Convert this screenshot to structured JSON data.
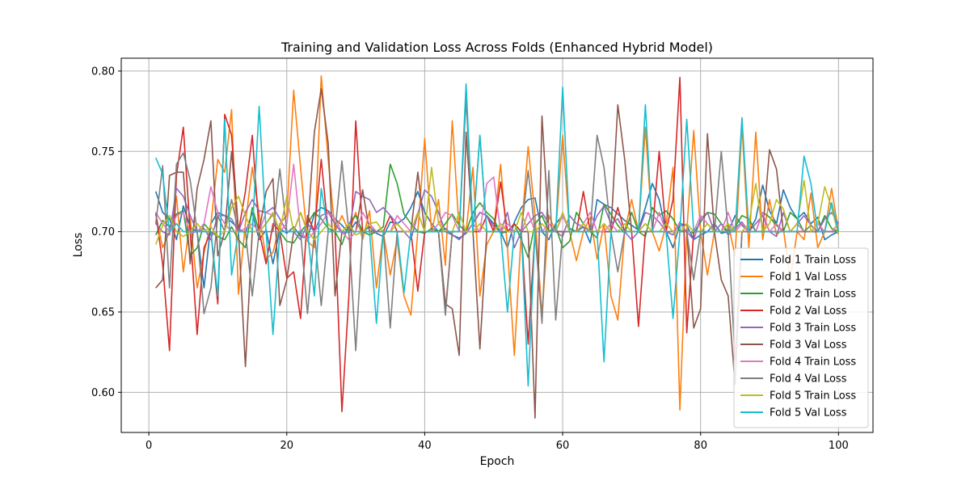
{
  "chart_data": {
    "type": "line",
    "title": "Training and Validation Loss Across Folds (Enhanced Hybrid Model)",
    "xlabel": "Epoch",
    "ylabel": "Loss",
    "xlim": [
      -4,
      105
    ],
    "ylim": [
      0.575,
      0.808
    ],
    "xticks": [
      0,
      20,
      40,
      60,
      80,
      100
    ],
    "yticks": [
      0.6,
      0.65,
      0.7,
      0.75,
      0.8
    ],
    "ytick_labels": [
      "0.60",
      "0.65",
      "0.70",
      "0.75",
      "0.80"
    ],
    "grid": true,
    "legend_position": "lower-right",
    "series": [
      {
        "name": "Fold 1 Train Loss",
        "color": "#1f77b4",
        "x_start": 1,
        "values": [
          0.725,
          0.712,
          0.708,
          0.695,
          0.716,
          0.703,
          0.7,
          0.665,
          0.705,
          0.712,
          0.71,
          0.706,
          0.702,
          0.699,
          0.712,
          0.695,
          0.701,
          0.68,
          0.702,
          0.699,
          0.703,
          0.697,
          0.696,
          0.711,
          0.715,
          0.713,
          0.708,
          0.704,
          0.699,
          0.706,
          0.7,
          0.703,
          0.699,
          0.697,
          0.706,
          0.705,
          0.708,
          0.715,
          0.725,
          0.712,
          0.705,
          0.7,
          0.702,
          0.698,
          0.696,
          0.699,
          0.705,
          0.712,
          0.71,
          0.705,
          0.7,
          0.69,
          0.706,
          0.715,
          0.72,
          0.721,
          0.7,
          0.695,
          0.705,
          0.71,
          0.702,
          0.7,
          0.703,
          0.693,
          0.72,
          0.717,
          0.715,
          0.711,
          0.707,
          0.704,
          0.701,
          0.715,
          0.73,
          0.72,
          0.7,
          0.69,
          0.705,
          0.704,
          0.695,
          0.698,
          0.7,
          0.705,
          0.699,
          0.7,
          0.71,
          0.704,
          0.7,
          0.708,
          0.729,
          0.713,
          0.705,
          0.726,
          0.715,
          0.708,
          0.712,
          0.705,
          0.709,
          0.695,
          0.698,
          0.7
        ]
      },
      {
        "name": "Fold 1 Val Loss",
        "color": "#ff7f0e",
        "x_start": 1,
        "values": [
          0.711,
          0.69,
          0.7,
          0.722,
          0.675,
          0.708,
          0.665,
          0.687,
          0.705,
          0.745,
          0.737,
          0.776,
          0.661,
          0.705,
          0.74,
          0.711,
          0.683,
          0.687,
          0.705,
          0.71,
          0.788,
          0.74,
          0.694,
          0.69,
          0.797,
          0.745,
          0.7,
          0.71,
          0.7,
          0.712,
          0.695,
          0.713,
          0.665,
          0.7,
          0.673,
          0.695,
          0.66,
          0.648,
          0.7,
          0.758,
          0.7,
          0.72,
          0.679,
          0.769,
          0.7,
          0.7,
          0.74,
          0.66,
          0.692,
          0.7,
          0.742,
          0.69,
          0.623,
          0.7,
          0.753,
          0.71,
          0.648,
          0.71,
          0.7,
          0.76,
          0.7,
          0.682,
          0.7,
          0.709,
          0.683,
          0.705,
          0.66,
          0.645,
          0.7,
          0.72,
          0.7,
          0.765,
          0.7,
          0.688,
          0.704,
          0.74,
          0.589,
          0.7,
          0.763,
          0.7,
          0.673,
          0.7,
          0.7,
          0.705,
          0.685,
          0.766,
          0.69,
          0.762,
          0.695,
          0.72,
          0.698,
          0.702,
          0.67,
          0.7,
          0.695,
          0.724,
          0.69,
          0.7,
          0.727,
          0.7
        ]
      },
      {
        "name": "Fold 2 Train Loss",
        "color": "#2ca02c",
        "x_start": 1,
        "values": [
          0.698,
          0.707,
          0.703,
          0.711,
          0.713,
          0.685,
          0.69,
          0.705,
          0.7,
          0.697,
          0.695,
          0.703,
          0.695,
          0.69,
          0.715,
          0.7,
          0.705,
          0.711,
          0.7,
          0.694,
          0.693,
          0.7,
          0.705,
          0.712,
          0.708,
          0.702,
          0.7,
          0.692,
          0.705,
          0.71,
          0.7,
          0.698,
          0.7,
          0.703,
          0.742,
          0.73,
          0.711,
          0.705,
          0.7,
          0.699,
          0.702,
          0.7,
          0.705,
          0.711,
          0.704,
          0.7,
          0.712,
          0.718,
          0.712,
          0.708,
          0.699,
          0.7,
          0.705,
          0.695,
          0.684,
          0.705,
          0.71,
          0.7,
          0.703,
          0.69,
          0.694,
          0.712,
          0.705,
          0.7,
          0.696,
          0.717,
          0.711,
          0.704,
          0.699,
          0.712,
          0.7,
          0.697,
          0.715,
          0.71,
          0.713,
          0.708,
          0.7,
          0.701,
          0.699,
          0.706,
          0.712,
          0.711,
          0.705,
          0.7,
          0.703,
          0.71,
          0.708,
          0.7,
          0.712,
          0.709,
          0.704,
          0.7,
          0.712,
          0.708,
          0.7,
          0.704,
          0.7,
          0.71,
          0.702,
          0.7
        ]
      },
      {
        "name": "Fold 2 Val Loss",
        "color": "#d62728",
        "x_start": 1,
        "values": [
          0.712,
          0.68,
          0.626,
          0.735,
          0.765,
          0.7,
          0.636,
          0.69,
          0.7,
          0.655,
          0.773,
          0.76,
          0.7,
          0.725,
          0.76,
          0.7,
          0.68,
          0.705,
          0.7,
          0.671,
          0.675,
          0.646,
          0.71,
          0.7,
          0.745,
          0.7,
          0.7,
          0.588,
          0.66,
          0.769,
          0.7,
          0.7,
          0.7,
          0.7,
          0.71,
          0.7,
          0.7,
          0.7,
          0.663,
          0.7,
          0.7,
          0.7,
          0.65,
          0.7,
          0.7,
          0.7,
          0.7,
          0.7,
          0.71,
          0.7,
          0.731,
          0.7,
          0.705,
          0.7,
          0.63,
          0.7,
          0.7,
          0.7,
          0.7,
          0.7,
          0.7,
          0.7,
          0.725,
          0.7,
          0.7,
          0.7,
          0.7,
          0.715,
          0.7,
          0.7,
          0.641,
          0.7,
          0.7,
          0.75,
          0.7,
          0.72,
          0.796,
          0.637,
          0.7,
          0.7,
          0.7,
          0.7,
          0.7,
          0.7,
          0.7,
          0.7,
          0.7,
          0.7,
          0.7,
          0.7,
          0.7,
          0.7,
          0.7,
          0.7,
          0.7,
          0.7,
          0.7,
          0.7,
          0.7,
          0.7
        ]
      },
      {
        "name": "Fold 3 Train Loss",
        "color": "#9467bd",
        "x_start": 1,
        "values": [
          0.705,
          0.7,
          0.698,
          0.727,
          0.722,
          0.71,
          0.7,
          0.702,
          0.695,
          0.71,
          0.71,
          0.708,
          0.7,
          0.712,
          0.72,
          0.713,
          0.712,
          0.715,
          0.708,
          0.7,
          0.7,
          0.695,
          0.705,
          0.7,
          0.71,
          0.712,
          0.705,
          0.699,
          0.7,
          0.725,
          0.722,
          0.72,
          0.712,
          0.715,
          0.71,
          0.705,
          0.7,
          0.695,
          0.711,
          0.726,
          0.722,
          0.712,
          0.7,
          0.698,
          0.695,
          0.7,
          0.705,
          0.712,
          0.71,
          0.703,
          0.7,
          0.712,
          0.69,
          0.7,
          0.705,
          0.71,
          0.712,
          0.705,
          0.7,
          0.697,
          0.71,
          0.705,
          0.703,
          0.7,
          0.71,
          0.716,
          0.705,
          0.708,
          0.7,
          0.695,
          0.7,
          0.712,
          0.71,
          0.706,
          0.7,
          0.698,
          0.706,
          0.7,
          0.695,
          0.708,
          0.712,
          0.7,
          0.705,
          0.698,
          0.702,
          0.706,
          0.7,
          0.705,
          0.71,
          0.7,
          0.697,
          0.712,
          0.7,
          0.705,
          0.71,
          0.704,
          0.7,
          0.708,
          0.712,
          0.705
        ]
      },
      {
        "name": "Fold 3 Val Loss",
        "color": "#8c564b",
        "x_start": 1,
        "values": [
          0.665,
          0.67,
          0.735,
          0.737,
          0.737,
          0.68,
          0.727,
          0.745,
          0.769,
          0.685,
          0.7,
          0.75,
          0.7,
          0.616,
          0.7,
          0.7,
          0.725,
          0.733,
          0.654,
          0.67,
          0.7,
          0.712,
          0.7,
          0.762,
          0.789,
          0.755,
          0.66,
          0.7,
          0.7,
          0.7,
          0.726,
          0.7,
          0.7,
          0.7,
          0.7,
          0.7,
          0.7,
          0.7,
          0.737,
          0.7,
          0.7,
          0.7,
          0.655,
          0.652,
          0.623,
          0.762,
          0.7,
          0.627,
          0.7,
          0.7,
          0.7,
          0.7,
          0.7,
          0.7,
          0.7,
          0.584,
          0.772,
          0.7,
          0.7,
          0.7,
          0.7,
          0.7,
          0.7,
          0.7,
          0.7,
          0.7,
          0.7,
          0.779,
          0.745,
          0.7,
          0.7,
          0.7,
          0.7,
          0.7,
          0.7,
          0.7,
          0.7,
          0.7,
          0.64,
          0.652,
          0.761,
          0.7,
          0.67,
          0.66,
          0.605,
          0.7,
          0.7,
          0.7,
          0.7,
          0.751,
          0.739,
          0.7,
          0.7,
          0.7,
          0.7,
          0.7,
          0.7,
          0.7,
          0.7,
          0.7
        ]
      },
      {
        "name": "Fold 4 Train Loss",
        "color": "#e377c2",
        "x_start": 1,
        "values": [
          0.712,
          0.705,
          0.7,
          0.71,
          0.712,
          0.699,
          0.7,
          0.705,
          0.728,
          0.712,
          0.705,
          0.7,
          0.7,
          0.702,
          0.705,
          0.7,
          0.712,
          0.71,
          0.7,
          0.705,
          0.742,
          0.7,
          0.695,
          0.7,
          0.705,
          0.712,
          0.708,
          0.7,
          0.695,
          0.7,
          0.712,
          0.705,
          0.7,
          0.7,
          0.7,
          0.71,
          0.705,
          0.7,
          0.712,
          0.7,
          0.7,
          0.705,
          0.712,
          0.71,
          0.7,
          0.7,
          0.705,
          0.7,
          0.73,
          0.734,
          0.7,
          0.705,
          0.7,
          0.7,
          0.712,
          0.7,
          0.7,
          0.705,
          0.7,
          0.71,
          0.7,
          0.7,
          0.705,
          0.712,
          0.7,
          0.7,
          0.705,
          0.7,
          0.7,
          0.7,
          0.7,
          0.705,
          0.7,
          0.712,
          0.7,
          0.7,
          0.705,
          0.7,
          0.7,
          0.71,
          0.705,
          0.7,
          0.7,
          0.712,
          0.7,
          0.705,
          0.7,
          0.7,
          0.712,
          0.7,
          0.705,
          0.7,
          0.7,
          0.705,
          0.7,
          0.7,
          0.705,
          0.7,
          0.7,
          0.705
        ]
      },
      {
        "name": "Fold 4 Val Loss",
        "color": "#7f7f7f",
        "x_start": 1,
        "values": [
          0.705,
          0.741,
          0.665,
          0.742,
          0.749,
          0.732,
          0.7,
          0.649,
          0.665,
          0.71,
          0.7,
          0.72,
          0.7,
          0.7,
          0.66,
          0.7,
          0.7,
          0.7,
          0.739,
          0.7,
          0.7,
          0.7,
          0.649,
          0.7,
          0.654,
          0.7,
          0.7,
          0.744,
          0.7,
          0.626,
          0.7,
          0.7,
          0.7,
          0.7,
          0.64,
          0.7,
          0.7,
          0.7,
          0.7,
          0.7,
          0.7,
          0.7,
          0.648,
          0.7,
          0.7,
          0.783,
          0.7,
          0.76,
          0.7,
          0.7,
          0.7,
          0.7,
          0.7,
          0.7,
          0.738,
          0.7,
          0.643,
          0.738,
          0.645,
          0.7,
          0.7,
          0.7,
          0.7,
          0.7,
          0.76,
          0.74,
          0.7,
          0.675,
          0.7,
          0.7,
          0.7,
          0.7,
          0.7,
          0.7,
          0.7,
          0.7,
          0.7,
          0.7,
          0.67,
          0.7,
          0.7,
          0.7,
          0.75,
          0.7,
          0.62,
          0.7,
          0.7,
          0.7,
          0.7,
          0.7,
          0.7,
          0.7,
          0.7,
          0.7,
          0.7,
          0.7,
          0.7,
          0.7,
          0.7,
          0.7
        ]
      },
      {
        "name": "Fold 5 Train Loss",
        "color": "#bcbd22",
        "x_start": 1,
        "values": [
          0.692,
          0.704,
          0.71,
          0.7,
          0.697,
          0.7,
          0.705,
          0.7,
          0.703,
          0.697,
          0.7,
          0.715,
          0.722,
          0.71,
          0.7,
          0.7,
          0.705,
          0.712,
          0.7,
          0.722,
          0.7,
          0.712,
          0.7,
          0.695,
          0.7,
          0.705,
          0.7,
          0.7,
          0.705,
          0.698,
          0.7,
          0.705,
          0.706,
          0.7,
          0.7,
          0.705,
          0.7,
          0.7,
          0.712,
          0.7,
          0.74,
          0.705,
          0.7,
          0.7,
          0.712,
          0.7,
          0.7,
          0.705,
          0.7,
          0.7,
          0.705,
          0.7,
          0.7,
          0.712,
          0.7,
          0.7,
          0.705,
          0.7,
          0.7,
          0.712,
          0.7,
          0.7,
          0.705,
          0.7,
          0.7,
          0.705,
          0.7,
          0.7,
          0.705,
          0.7,
          0.7,
          0.705,
          0.7,
          0.7,
          0.705,
          0.7,
          0.7,
          0.705,
          0.7,
          0.7,
          0.705,
          0.7,
          0.7,
          0.705,
          0.7,
          0.7,
          0.705,
          0.73,
          0.7,
          0.705,
          0.72,
          0.714,
          0.7,
          0.705,
          0.732,
          0.7,
          0.705,
          0.728,
          0.715,
          0.698
        ]
      },
      {
        "name": "Fold 5 Val Loss",
        "color": "#17becf",
        "x_start": 1,
        "values": [
          0.746,
          0.736,
          0.7,
          0.705,
          0.7,
          0.7,
          0.7,
          0.7,
          0.7,
          0.66,
          0.77,
          0.673,
          0.7,
          0.7,
          0.7,
          0.778,
          0.7,
          0.636,
          0.7,
          0.7,
          0.7,
          0.7,
          0.7,
          0.66,
          0.727,
          0.7,
          0.7,
          0.7,
          0.7,
          0.7,
          0.7,
          0.7,
          0.643,
          0.7,
          0.7,
          0.7,
          0.662,
          0.7,
          0.7,
          0.7,
          0.7,
          0.7,
          0.7,
          0.7,
          0.7,
          0.792,
          0.7,
          0.76,
          0.7,
          0.7,
          0.7,
          0.65,
          0.7,
          0.7,
          0.604,
          0.7,
          0.7,
          0.7,
          0.7,
          0.79,
          0.7,
          0.7,
          0.7,
          0.7,
          0.7,
          0.619,
          0.7,
          0.7,
          0.7,
          0.7,
          0.7,
          0.779,
          0.7,
          0.7,
          0.7,
          0.646,
          0.7,
          0.77,
          0.7,
          0.7,
          0.7,
          0.7,
          0.7,
          0.7,
          0.7,
          0.771,
          0.7,
          0.7,
          0.7,
          0.7,
          0.7,
          0.7,
          0.7,
          0.7,
          0.747,
          0.73,
          0.7,
          0.7,
          0.718,
          0.7
        ]
      }
    ]
  }
}
